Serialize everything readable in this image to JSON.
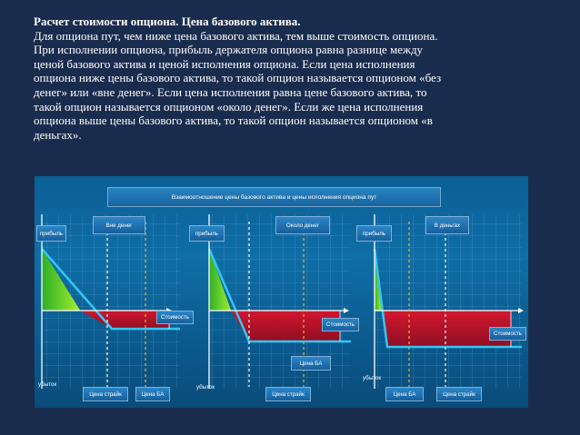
{
  "heading": "Расчет стоимости опциона. Цена базового актива.",
  "paragraph_lines": [
    "Для опциона пут, чем ниже цена базового актива, тем выше стоимость опциона.",
    "При исполнении опциона, прибыль держателя опциона равна разнице между",
    "ценой базового актива и ценой исполнения опциона. Если цена исполнения",
    "опциона ниже цены базового актива, то такой опцион называется опционом «без",
    "денег» или «вне денег». Если цена исполнения равна цене базового актива, то",
    "такой опцион называется опционом «около денег». Если же цена исполнения",
    "опциона выше цены базового актива, то такой опцион называется опционом «в",
    "деньгах»."
  ],
  "figure": {
    "title": "Взаимоотношение цены базового актива и цены исполнения опциона пут",
    "panels": [
      {
        "name": "Вне денег",
        "profit": "прибыль",
        "loss": "убыток",
        "cost": "Стоимость",
        "strike": "Цена страйк",
        "asset": "Цена БА"
      },
      {
        "name": "Около денег",
        "profit": "прибыль",
        "loss": "убыток",
        "cost": "Стоимость",
        "strike": "Цена страйк",
        "asset": "Цена БА"
      },
      {
        "name": "В деньгах",
        "profit": "прибыль",
        "loss": "убыток",
        "cost": "Стоимость",
        "strike": "Цена страйк",
        "asset": "Цена БА"
      }
    ],
    "colors": {
      "background": "#1a2c4e",
      "payoff_line": "#33c6f4",
      "profit_fill": "#4fc52a",
      "loss_fill": "#b3122a",
      "asset_line": "#e8b23a"
    }
  }
}
